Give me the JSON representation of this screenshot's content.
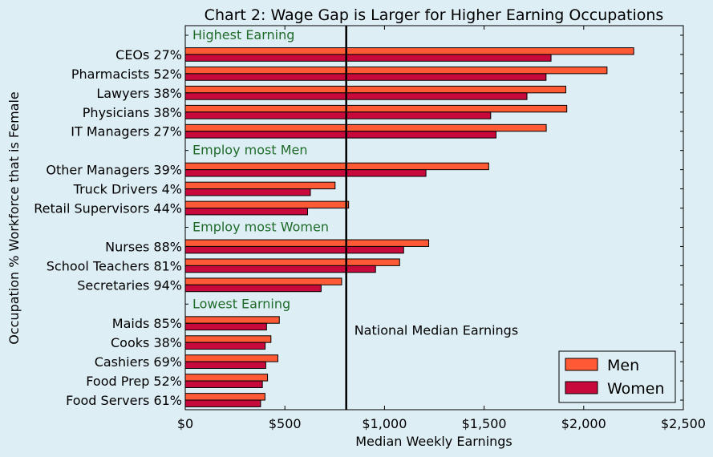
{
  "chart_data": {
    "type": "bar",
    "orientation": "horizontal",
    "title": "Chart 2: Wage Gap is Larger for Higher Earning Occupations",
    "xlabel": "Median Weekly Earnings",
    "ylabel": "Occupation % Workforce that is Female",
    "xlim": [
      0,
      2500
    ],
    "xticks": [
      {
        "value": 0,
        "label": "$0"
      },
      {
        "value": 500,
        "label": "$500"
      },
      {
        "value": 1000,
        "label": "$1,000"
      },
      {
        "value": 1500,
        "label": "$1,500"
      },
      {
        "value": 2000,
        "label": "$2,000"
      },
      {
        "value": 2500,
        "label": "$2,500"
      }
    ],
    "legend_position": "bottom-right",
    "colors": {
      "Men": "#ff5a36",
      "Women": "#c8093b",
      "reference": "#000000",
      "group_label": "#1f6b2a",
      "background": "#deeef5"
    },
    "reference_line": {
      "value": 808,
      "label": "National Median Earnings"
    },
    "groups": [
      {
        "label": "Highest Earning",
        "categories": [
          {
            "label": "CEOs 27%",
            "men": 2251,
            "women": 1836
          },
          {
            "label": "Pharmacists 52%",
            "men": 2117,
            "women": 1811
          },
          {
            "label": "Lawyers 38%",
            "men": 1910,
            "women": 1715
          },
          {
            "label": "Physicians 38%",
            "men": 1915,
            "women": 1533
          },
          {
            "label": "IT Managers 27%",
            "men": 1812,
            "women": 1560
          }
        ]
      },
      {
        "label": "Employ most Men",
        "categories": [
          {
            "label": "Other Managers 39%",
            "men": 1523,
            "women": 1208
          },
          {
            "label": "Truck Drivers 4%",
            "men": 752,
            "women": 628
          },
          {
            "label": "Retail Supervisors 44%",
            "men": 820,
            "women": 614
          }
        ]
      },
      {
        "label": "Employ most Women",
        "categories": [
          {
            "label": "Nurses 88%",
            "men": 1222,
            "women": 1096
          },
          {
            "label": "School Teachers 81%",
            "men": 1076,
            "women": 955
          },
          {
            "label": "Secretaries 94%",
            "men": 785,
            "women": 682
          }
        ]
      },
      {
        "label": "Lowest Earning",
        "categories": [
          {
            "label": "Maids 85%",
            "men": 472,
            "women": 408
          },
          {
            "label": "Cooks 38%",
            "men": 430,
            "women": 401
          },
          {
            "label": "Cashiers 69%",
            "men": 465,
            "women": 404
          },
          {
            "label": "Food Prep 52%",
            "men": 413,
            "women": 387
          },
          {
            "label": "Food Servers 61%",
            "men": 400,
            "women": 378
          }
        ]
      }
    ],
    "series": [
      {
        "name": "Men",
        "key": "men"
      },
      {
        "name": "Women",
        "key": "women"
      }
    ]
  }
}
